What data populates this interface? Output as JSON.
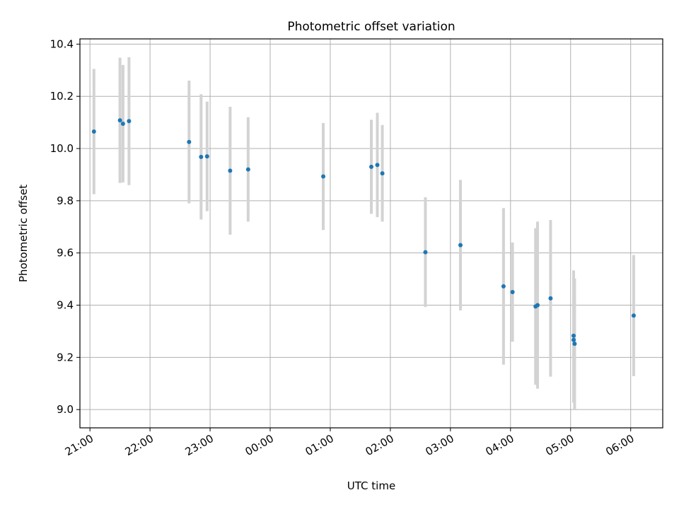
{
  "chart_data": {
    "type": "scatter",
    "title": "Photometric offset variation",
    "xlabel": "UTC time",
    "ylabel": "Photometric offset",
    "x_unit": "UTC time (HH:MM)",
    "xlim": [
      "20:50",
      "06:32"
    ],
    "ylim": [
      8.93,
      10.42
    ],
    "xticks": [
      "21:00",
      "22:00",
      "23:00",
      "00:00",
      "01:00",
      "02:00",
      "03:00",
      "04:00",
      "05:00",
      "06:00"
    ],
    "yticks": [
      9.0,
      9.2,
      9.4,
      9.6,
      9.8,
      10.0,
      10.2,
      10.4
    ],
    "ytick_labels": [
      "9.0",
      "9.2",
      "9.4",
      "9.6",
      "9.8",
      "10.0",
      "10.2",
      "10.4"
    ],
    "grid": true,
    "marker_color": "#1f77b4",
    "errorbar_color": "#d3d3d3",
    "points": [
      {
        "time": "21:04",
        "y": 10.065,
        "err": 0.24
      },
      {
        "time": "21:30",
        "y": 10.108,
        "err": 0.24
      },
      {
        "time": "21:33",
        "y": 10.095,
        "err": 0.225
      },
      {
        "time": "21:39",
        "y": 10.105,
        "err": 0.245
      },
      {
        "time": "22:39",
        "y": 10.025,
        "err": 0.235
      },
      {
        "time": "22:51",
        "y": 9.968,
        "err": 0.24
      },
      {
        "time": "22:57",
        "y": 9.97,
        "err": 0.21
      },
      {
        "time": "23:20",
        "y": 9.915,
        "err": 0.245
      },
      {
        "time": "23:38",
        "y": 9.92,
        "err": 0.2
      },
      {
        "time": "00:53",
        "y": 9.893,
        "err": 0.205
      },
      {
        "time": "01:41",
        "y": 9.93,
        "err": 0.18
      },
      {
        "time": "01:47",
        "y": 9.937,
        "err": 0.2
      },
      {
        "time": "01:52",
        "y": 9.905,
        "err": 0.185
      },
      {
        "time": "02:35",
        "y": 9.603,
        "err": 0.21
      },
      {
        "time": "03:10",
        "y": 9.63,
        "err": 0.25
      },
      {
        "time": "03:53",
        "y": 9.472,
        "err": 0.3
      },
      {
        "time": "04:02",
        "y": 9.45,
        "err": 0.19
      },
      {
        "time": "04:25",
        "y": 9.395,
        "err": 0.3
      },
      {
        "time": "04:27",
        "y": 9.4,
        "err": 0.32
      },
      {
        "time": "04:40",
        "y": 9.426,
        "err": 0.3
      },
      {
        "time": "05:03",
        "y": 9.283,
        "err": 0.25
      },
      {
        "time": "05:03",
        "y": 9.267,
        "err": 0.24
      },
      {
        "time": "05:04",
        "y": 9.252,
        "err": 0.25
      },
      {
        "time": "06:03",
        "y": 9.36,
        "err": 0.232
      }
    ]
  }
}
